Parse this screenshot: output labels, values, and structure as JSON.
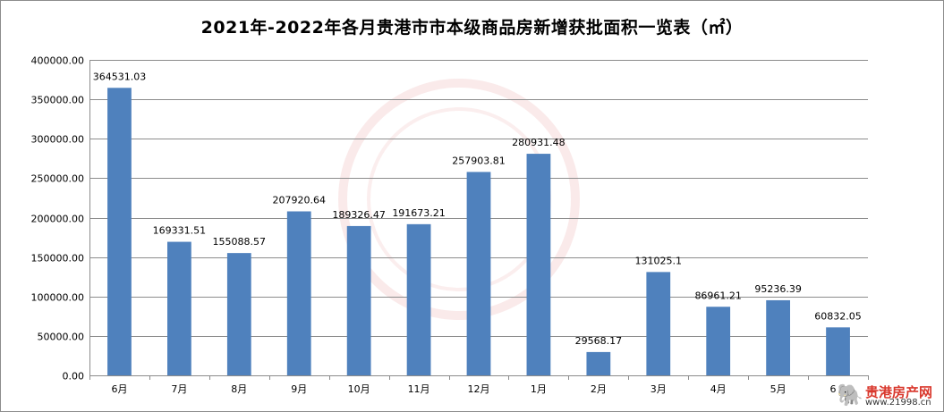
{
  "chart_data": {
    "type": "bar",
    "title": "2021年-2022年各月贵港市市本级商品房新增获批面积一览表（㎡）",
    "categories": [
      "6月",
      "7月",
      "8月",
      "9月",
      "10月",
      "11月",
      "12月",
      "1月",
      "2月",
      "3月",
      "4月",
      "5月",
      "6月"
    ],
    "values": [
      364531.03,
      169331.51,
      155088.57,
      207920.64,
      189326.47,
      191673.21,
      257903.81,
      280931.48,
      29568.17,
      131025.1,
      86961.21,
      95236.39,
      60832.05
    ],
    "value_labels": [
      "364531.03",
      "169331.51",
      "155088.57",
      "207920.64",
      "189326.47",
      "191673.21",
      "257903.81",
      "280931.48",
      "29568.17",
      "131025.1",
      "86961.21",
      "95236.39",
      "60832.05"
    ],
    "ylim": [
      0,
      400000
    ],
    "y_ticks": [
      "0.00",
      "50000.00",
      "100000.00",
      "150000.00",
      "200000.00",
      "250000.00",
      "300000.00",
      "350000.00",
      "400000.00"
    ],
    "y_tick_values": [
      0,
      50000,
      100000,
      150000,
      200000,
      250000,
      300000,
      350000,
      400000
    ],
    "grid": true,
    "legend": "none",
    "bar_color": "#4f81bd"
  },
  "watermark": {
    "logo_text": "贵港房产网",
    "logo_url": "www.21998.cn"
  }
}
